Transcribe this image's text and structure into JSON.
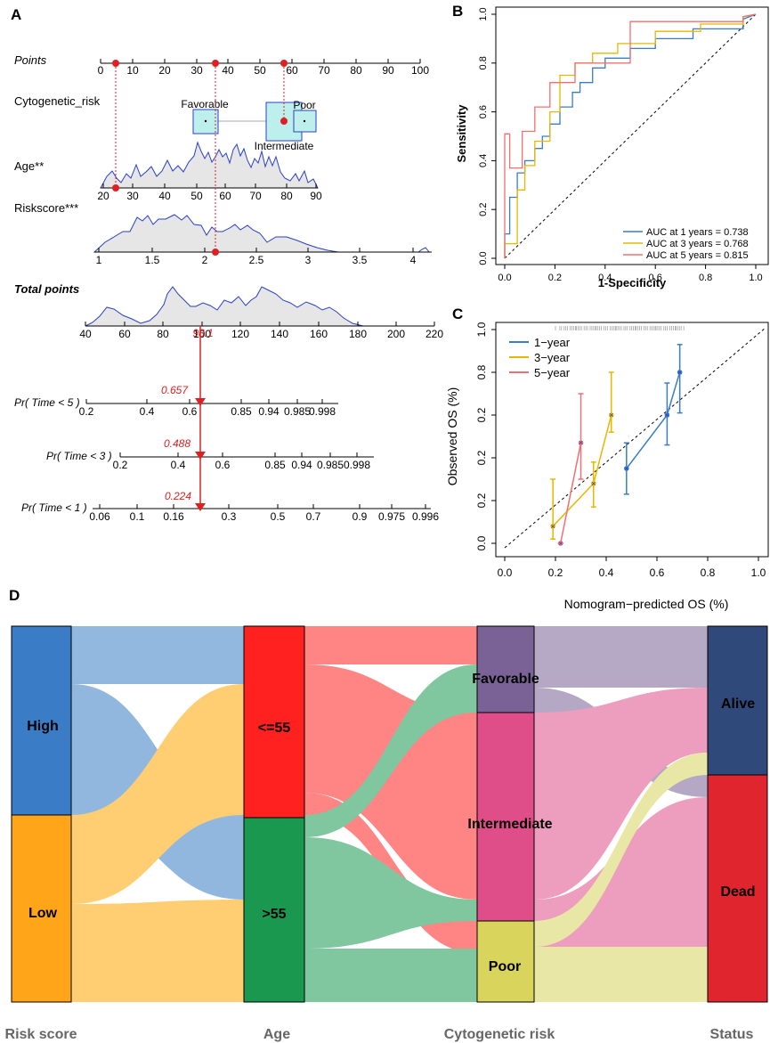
{
  "panels": {
    "A": {
      "label": "A",
      "points_label": "Points",
      "points_ticks": [
        "0",
        "10",
        "20",
        "30",
        "40",
        "50",
        "60",
        "70",
        "80",
        "90",
        "100"
      ],
      "cyto_label": "Cytogenetic_risk",
      "cyto_favorable": "Favorable",
      "cyto_poor": "Poor",
      "cyto_intermediate": "Intermediate",
      "age_label": "Age**",
      "age_ticks": [
        "20",
        "30",
        "40",
        "50",
        "60",
        "70",
        "80",
        "90"
      ],
      "risk_label": "Riskscore***",
      "risk_ticks": [
        "1",
        "1.5",
        "2",
        "2.5",
        "3",
        "3.5",
        "4"
      ],
      "total_label": "Total points",
      "total_ticks": [
        "40",
        "60",
        "80",
        "100",
        "120",
        "140",
        "160",
        "180",
        "200",
        "220"
      ],
      "total_value": "98.1",
      "pr5_label": "Pr( Time < 5 )",
      "pr5_ticks": [
        "0.2",
        "0.4",
        "0.6",
        "0.85",
        "0.94",
        "0.985",
        "0.998"
      ],
      "pr5_value": "0.657",
      "pr3_label": "Pr( Time < 3 )",
      "pr3_ticks": [
        "0.2",
        "0.4",
        "0.6",
        "0.85",
        "0.94",
        "0.985",
        "0.998"
      ],
      "pr3_value": "0.488",
      "pr1_label": "Pr( Time < 1 )",
      "pr1_ticks": [
        "0.06",
        "0.1",
        "0.16",
        "0.3",
        "0.5",
        "0.7",
        "0.9",
        "0.975",
        "0.996"
      ],
      "pr1_value": "0.224"
    },
    "B": {
      "label": "B",
      "xlabel": "1-Specificity",
      "ylabel": "Sensitivity",
      "x_ticks": [
        "0.0",
        "0.2",
        "0.4",
        "0.6",
        "0.8",
        "1.0"
      ],
      "y_ticks": [
        "0.0",
        "0.2",
        "0.4",
        "0.6",
        "0.8",
        "1.0"
      ],
      "legend": [
        {
          "text": "AUC at 1 years = 0.738",
          "color": "#3a7dc6"
        },
        {
          "text": "AUC at 3 years = 0.768",
          "color": "#e6b800"
        },
        {
          "text": "AUC at 5 years = 0.815",
          "color": "#f07070"
        }
      ]
    },
    "C": {
      "label": "C",
      "xlabel": "Nomogram−predicted OS (%)",
      "ylabel": "Observed OS (%)",
      "x_ticks": [
        "0.0",
        "0.2",
        "0.4",
        "0.6",
        "0.8",
        "1.0"
      ],
      "y_ticks": [
        "0.0",
        "0.2",
        "0.2",
        "0.2",
        "0.8",
        "1.0"
      ],
      "legend": [
        {
          "text": "1−year",
          "color": "#3a7dc6"
        },
        {
          "text": "3−year",
          "color": "#e6b800"
        },
        {
          "text": "5−year",
          "color": "#f07070"
        }
      ]
    },
    "D": {
      "label": "D",
      "axis_labels": [
        "Risk score",
        "Age",
        "Cytogenetic risk",
        "Status"
      ],
      "risk_nodes": [
        "High",
        "Low"
      ],
      "age_nodes": [
        "<=55",
        ">55"
      ],
      "cyto_nodes": [
        "Favorable",
        "Intermediate",
        "Poor"
      ],
      "status_nodes": [
        "Alive",
        "Dead"
      ]
    }
  },
  "chart_data": [
    {
      "type": "nomogram",
      "title": "A",
      "variables": [
        {
          "name": "Points",
          "range": [
            0,
            100
          ]
        },
        {
          "name": "Cytogenetic_risk",
          "levels": [
            "Favorable",
            "Intermediate",
            "Poor"
          ],
          "points": [
            32,
            55,
            62
          ]
        },
        {
          "name": "Age",
          "range": [
            20,
            90
          ]
        },
        {
          "name": "Riskscore",
          "range": [
            1,
            4
          ]
        }
      ],
      "total_points_range": [
        40,
        220
      ],
      "example_total": 98.1,
      "predictions": {
        "Pr(Time<5)": 0.657,
        "Pr(Time<3)": 0.488,
        "Pr(Time<1)": 0.224
      }
    },
    {
      "type": "line",
      "title": "B",
      "xlabel": "1-Specificity",
      "ylabel": "Sensitivity",
      "xlim": [
        0,
        1
      ],
      "ylim": [
        0,
        1
      ],
      "series": [
        {
          "name": "AUC at 1 years = 0.738",
          "color": "#3a7dc6",
          "x": [
            0,
            0,
            0.02,
            0.02,
            0.05,
            0.05,
            0.08,
            0.08,
            0.12,
            0.12,
            0.15,
            0.15,
            0.18,
            0.18,
            0.22,
            0.22,
            0.27,
            0.27,
            0.3,
            0.3,
            0.35,
            0.35,
            0.4,
            0.4,
            0.5,
            0.5,
            0.6,
            0.6,
            0.75,
            0.75,
            0.95,
            0.95,
            1
          ],
          "y": [
            0,
            0.1,
            0.1,
            0.25,
            0.25,
            0.35,
            0.35,
            0.4,
            0.4,
            0.45,
            0.45,
            0.5,
            0.5,
            0.55,
            0.55,
            0.62,
            0.62,
            0.68,
            0.68,
            0.72,
            0.72,
            0.78,
            0.78,
            0.82,
            0.82,
            0.86,
            0.86,
            0.9,
            0.9,
            0.94,
            0.94,
            0.98,
            1
          ]
        },
        {
          "name": "AUC at 3 years = 0.768",
          "color": "#e6b800",
          "x": [
            0,
            0,
            0.05,
            0.05,
            0.08,
            0.08,
            0.12,
            0.12,
            0.18,
            0.18,
            0.22,
            0.22,
            0.28,
            0.28,
            0.35,
            0.35,
            0.45,
            0.45,
            0.6,
            0.6,
            0.78,
            0.78,
            0.95,
            0.95,
            1
          ],
          "y": [
            0,
            0.06,
            0.06,
            0.28,
            0.28,
            0.38,
            0.38,
            0.48,
            0.48,
            0.6,
            0.6,
            0.75,
            0.75,
            0.8,
            0.8,
            0.84,
            0.84,
            0.88,
            0.88,
            0.93,
            0.93,
            0.96,
            0.96,
            0.99,
            1
          ]
        },
        {
          "name": "AUC at 5 years = 0.815",
          "color": "#f07070",
          "x": [
            0,
            0,
            0.02,
            0.02,
            0.07,
            0.07,
            0.12,
            0.12,
            0.18,
            0.18,
            0.28,
            0.28,
            0.5,
            0.5,
            0.95,
            0.95,
            1
          ],
          "y": [
            0,
            0.51,
            0.51,
            0.37,
            0.37,
            0.52,
            0.52,
            0.62,
            0.62,
            0.72,
            0.72,
            0.8,
            0.8,
            0.97,
            0.97,
            0.99,
            1
          ]
        }
      ]
    },
    {
      "type": "line",
      "title": "C",
      "xlabel": "Nomogram−predicted OS (%)",
      "ylabel": "Observed OS (%)",
      "xlim": [
        0,
        1
      ],
      "ylim": [
        0,
        1
      ],
      "series": [
        {
          "name": "1−year",
          "color": "#3a7dc6",
          "x": [
            0.48,
            0.64,
            0.69
          ],
          "y": [
            0.35,
            0.6,
            0.8
          ],
          "lo": [
            0.23,
            0.46,
            0.61
          ],
          "hi": [
            0.47,
            0.75,
            0.93
          ]
        },
        {
          "name": "3−year",
          "color": "#e6b800",
          "x": [
            0.19,
            0.35,
            0.42
          ],
          "y": [
            0.08,
            0.28,
            0.6
          ],
          "lo": [
            0.02,
            0.17,
            0.52
          ],
          "hi": [
            0.3,
            0.38,
            0.8
          ]
        },
        {
          "name": "5−year",
          "color": "#f07070",
          "x": [
            0.22,
            0.3
          ],
          "y": [
            0.0,
            0.47
          ],
          "lo": [
            0.0,
            0.3
          ],
          "hi": [
            0.0,
            0.7
          ]
        }
      ]
    },
    {
      "type": "alluvial",
      "title": "D",
      "axes": [
        "Risk score",
        "Age",
        "Cytogenetic risk",
        "Status"
      ],
      "nodes": {
        "Risk score": [
          "High",
          "Low"
        ],
        "Age": [
          "<=55",
          ">55"
        ],
        "Cytogenetic risk": [
          "Favorable",
          "Intermediate",
          "Poor"
        ],
        "Status": [
          "Alive",
          "Dead"
        ]
      }
    }
  ]
}
